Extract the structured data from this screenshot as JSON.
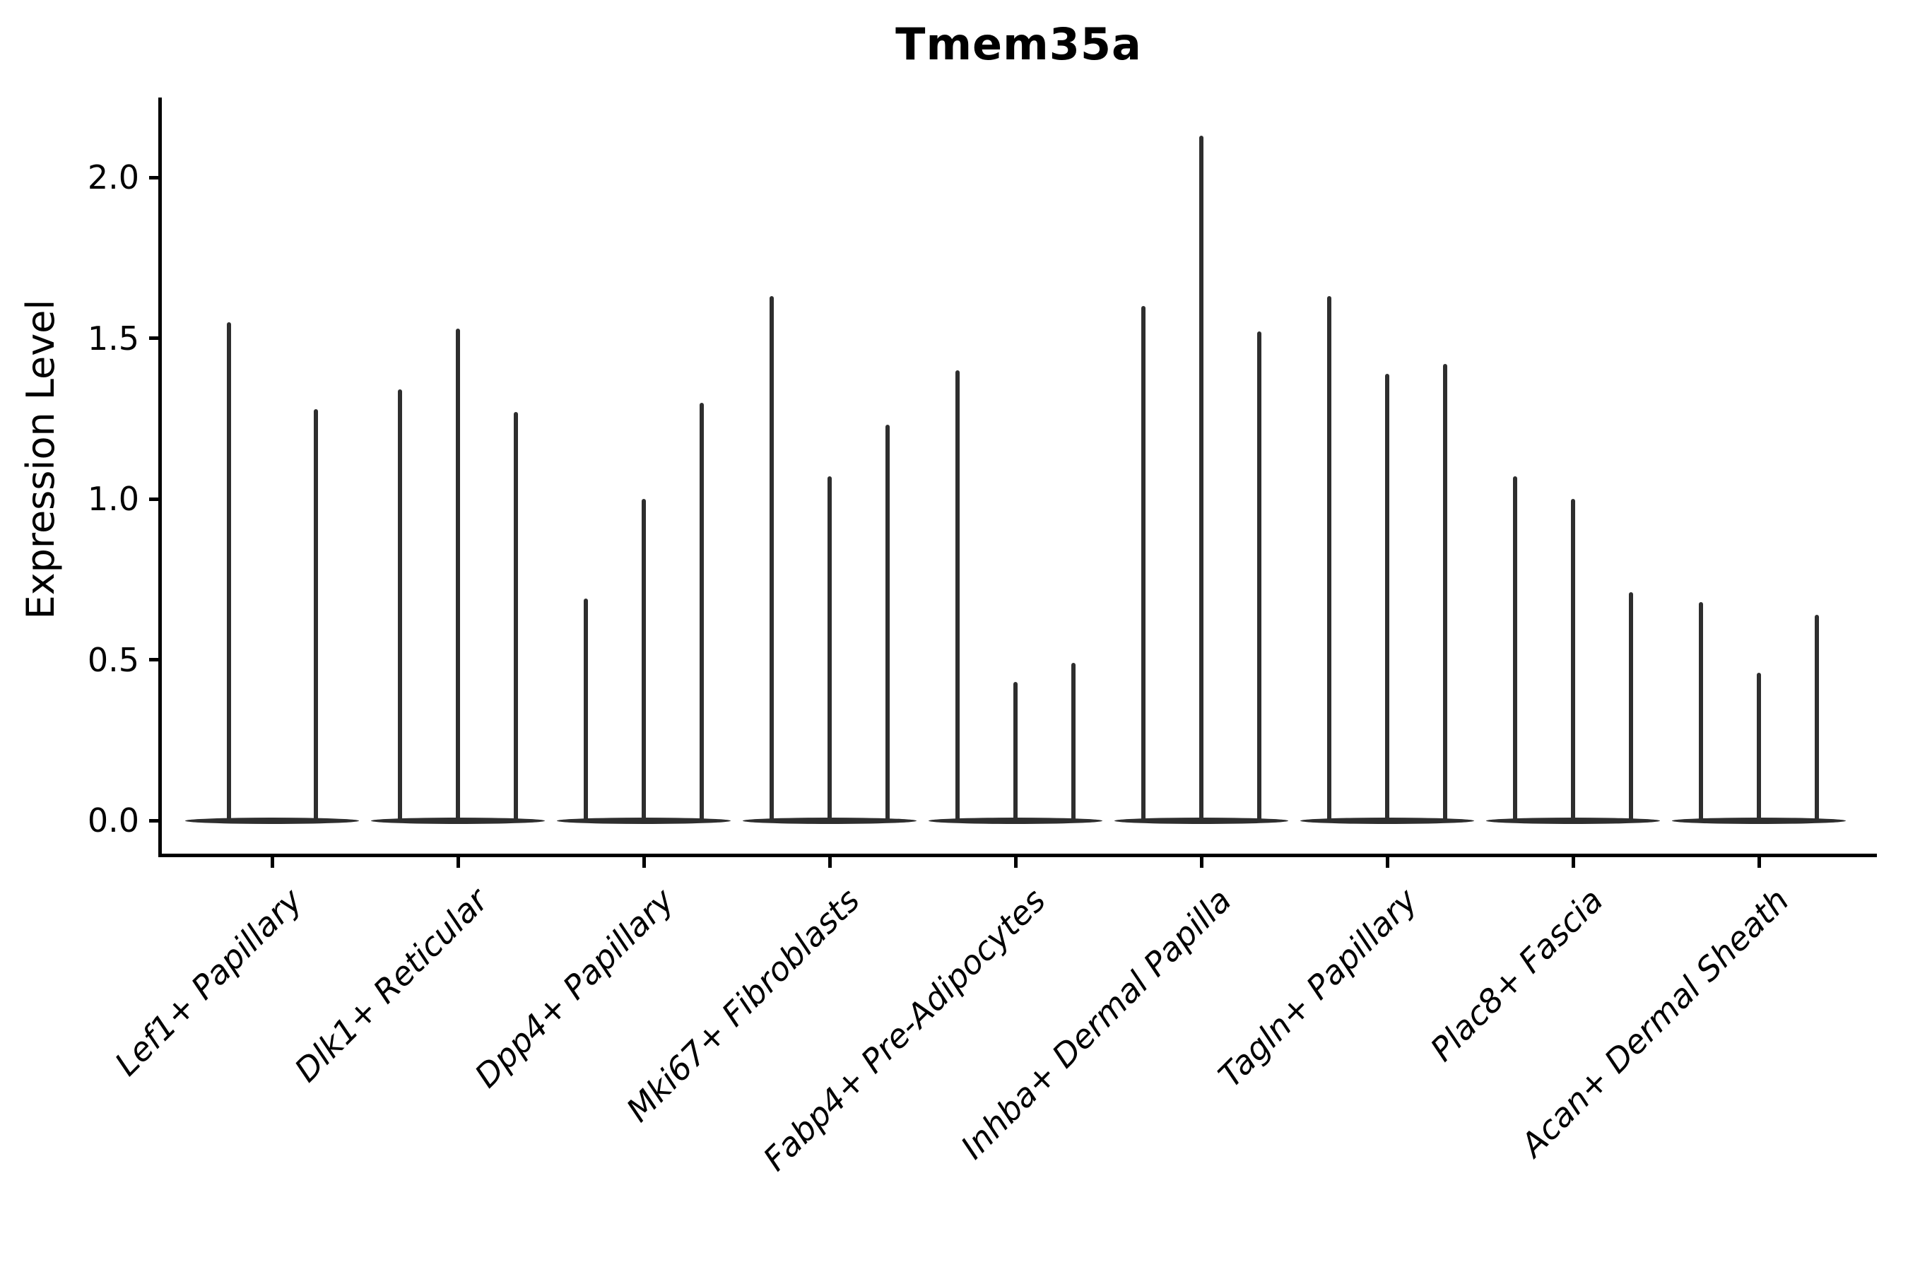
{
  "chart_data": {
    "type": "violin",
    "title": "Tmem35a",
    "xlabel": "",
    "ylabel": "Expression Level",
    "yticks": [
      0.0,
      0.5,
      1.0,
      1.5,
      2.0
    ],
    "ytick_labels": [
      "0.0",
      "0.5",
      "1.0",
      "1.5",
      "2.0"
    ],
    "ylim": [
      -0.11,
      2.24
    ],
    "grid": false,
    "legend": "none",
    "note": "Each category shows narrow spike-shaped violins (density concentrated at 0); violin_maxima are the top expression values reached by each violin, left to right.",
    "categories": [
      "Lef1+ Papillary",
      "Dlk1+ Reticular",
      "Dpp4+ Papillary",
      "Mki67+ Fibroblasts",
      "Fabp4+ Pre-Adipocytes",
      "Inhba+ Dermal Papilla",
      "Tagln+ Papillary",
      "Plac8+ Fascia",
      "Acan+ Dermal Sheath"
    ],
    "groups": [
      {
        "category": "Lef1+ Papillary",
        "violin_maxima": [
          1.55,
          1.28
        ]
      },
      {
        "category": "Dlk1+ Reticular",
        "violin_maxima": [
          1.34,
          1.53,
          1.27
        ]
      },
      {
        "category": "Dpp4+ Papillary",
        "violin_maxima": [
          0.69,
          1.0,
          1.3
        ]
      },
      {
        "category": "Mki67+ Fibroblasts",
        "violin_maxima": [
          1.63,
          1.07,
          1.23
        ]
      },
      {
        "category": "Fabp4+ Pre-Adipocytes",
        "violin_maxima": [
          1.4,
          0.43,
          0.49
        ]
      },
      {
        "category": "Inhba+ Dermal Papilla",
        "violin_maxima": [
          1.6,
          2.13,
          1.52
        ]
      },
      {
        "category": "Tagln+ Papillary",
        "violin_maxima": [
          1.63,
          1.39,
          1.42
        ]
      },
      {
        "category": "Plac8+ Fascia",
        "violin_maxima": [
          1.07,
          1.0,
          0.71
        ]
      },
      {
        "category": "Acan+ Dermal Sheath",
        "violin_maxima": [
          0.68,
          0.46,
          0.64
        ]
      }
    ],
    "colors": {
      "violin_line": "#2e2e2e",
      "axis": "#000000",
      "background": "#ffffff"
    }
  }
}
